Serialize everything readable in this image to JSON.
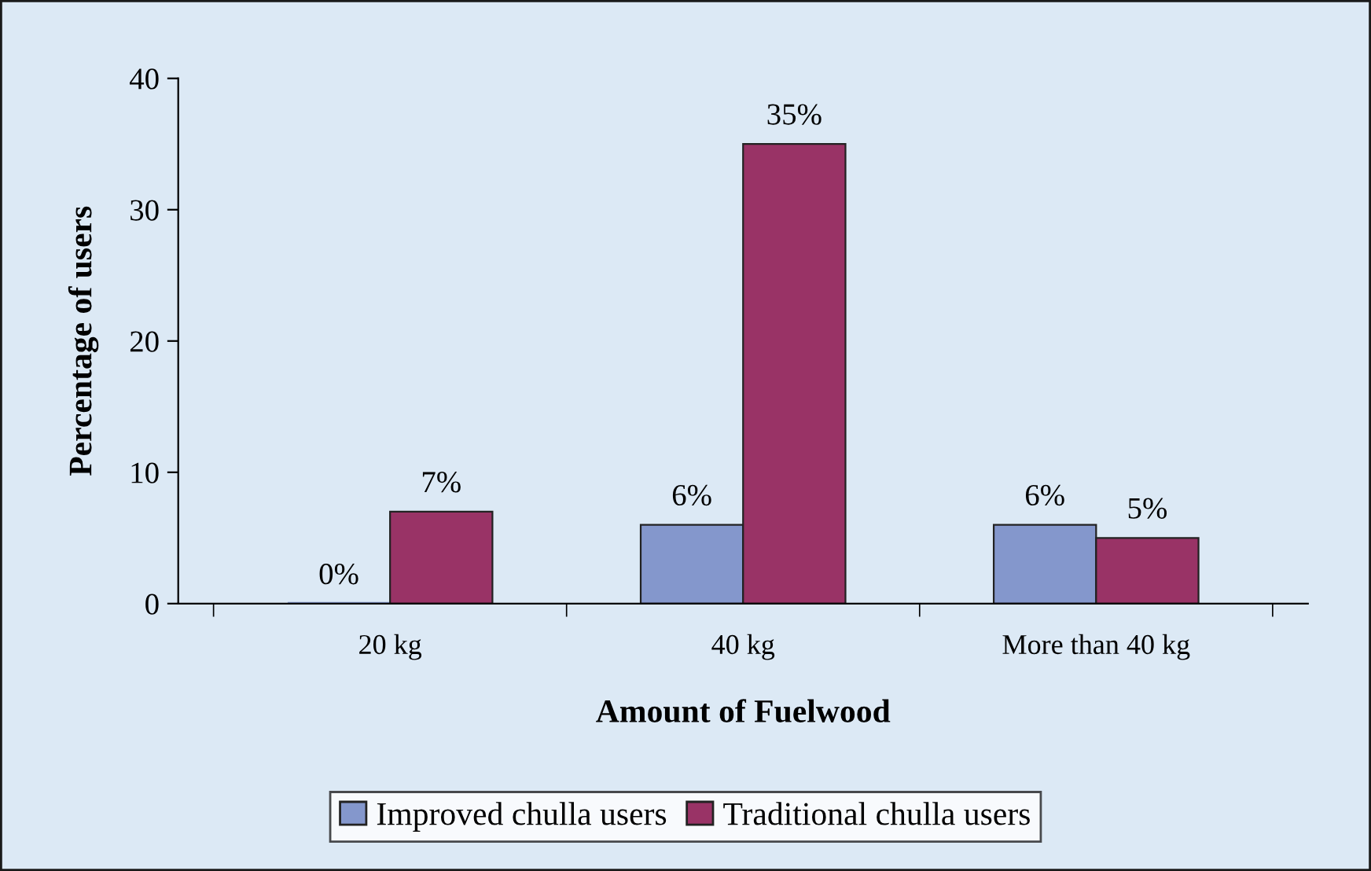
{
  "chart_data": {
    "type": "bar",
    "xlabel": "Amount of Fuelwood",
    "ylabel": "Percentage of users",
    "categories": [
      "20 kg",
      "40 kg",
      "More than 40 kg"
    ],
    "series": [
      {
        "name": "Improved chulla users",
        "color": "#8497cc",
        "values": [
          0,
          6,
          6
        ],
        "value_labels": [
          "0%",
          "6%",
          "6%"
        ]
      },
      {
        "name": "Traditional chulla users",
        "color": "#993366",
        "values": [
          7,
          35,
          5
        ],
        "value_labels": [
          "7%",
          "35%",
          "5%"
        ]
      }
    ],
    "ylim": [
      0,
      40
    ],
    "yticks": [
      0,
      10,
      20,
      30,
      40
    ],
    "grid": false,
    "legend": "bottom"
  }
}
